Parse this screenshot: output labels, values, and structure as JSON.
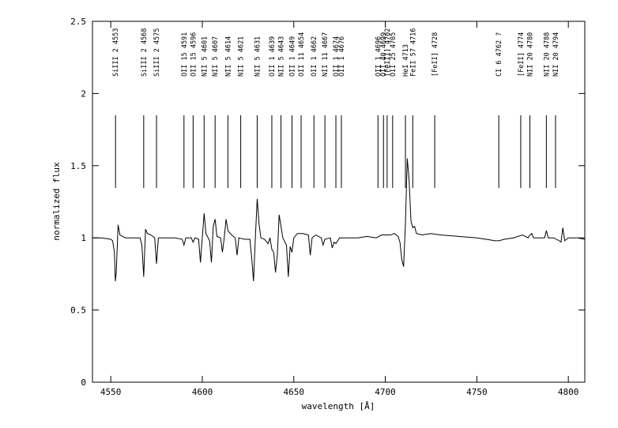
{
  "chart_data": {
    "type": "line",
    "x_label": "wavelength [Å]",
    "y_label": "normalized flux",
    "xlim": [
      4540,
      4809
    ],
    "ylim": [
      0,
      2.5
    ],
    "xticks": [
      4550,
      4600,
      4650,
      4700,
      4750,
      4800
    ],
    "yticks": [
      0,
      0.5,
      1,
      1.5,
      2,
      2.5
    ],
    "color": "#000000",
    "x": [
      4540,
      4545,
      4550,
      4551,
      4552,
      4552.5,
      4553,
      4554,
      4555,
      4558,
      4562,
      4566,
      4567,
      4568,
      4569,
      4570,
      4572,
      4574,
      4575,
      4576,
      4580,
      4585,
      4589,
      4590,
      4591,
      4594,
      4595,
      4596,
      4598,
      4599,
      4600,
      4601,
      4602,
      4604,
      4605,
      4606,
      4607,
      4608,
      4610,
      4611,
      4612,
      4613,
      4614,
      4616,
      4618,
      4619,
      4620,
      4623,
      4626,
      4627,
      4628,
      4629,
      4630,
      4631,
      4632,
      4634,
      4636,
      4637,
      4638,
      4639,
      4640,
      4641,
      4642,
      4643,
      4644,
      4646,
      4647,
      4648,
      4649,
      4650,
      4652,
      4655,
      4658,
      4659,
      4660,
      4662,
      4665,
      4666,
      4667,
      4670,
      4671,
      4672,
      4673,
      4675,
      4680,
      4685,
      4690,
      4695,
      4698,
      4700,
      4703,
      4705,
      4707,
      4708,
      4709,
      4710,
      4711,
      4712,
      4713,
      4714,
      4715,
      4716,
      4717,
      4720,
      4725,
      4730,
      4740,
      4750,
      4755,
      4760,
      4762,
      4765,
      4770,
      4775,
      4778,
      4779,
      4780,
      4781,
      4785,
      4787,
      4788,
      4789,
      4792,
      4795,
      4796,
      4797,
      4798,
      4800,
      4805,
      4809
    ],
    "values": [
      1.0,
      1.0,
      0.99,
      0.98,
      0.9,
      0.7,
      0.76,
      1.09,
      1.02,
      1.0,
      1.0,
      1.0,
      0.95,
      0.73,
      1.06,
      1.03,
      1.02,
      1.0,
      0.82,
      1.0,
      1.0,
      1.0,
      0.99,
      0.95,
      1.0,
      1.0,
      0.97,
      1.0,
      0.99,
      0.83,
      1.0,
      1.17,
      1.03,
      0.98,
      0.83,
      1.08,
      1.13,
      1.01,
      1.0,
      0.9,
      1.0,
      1.13,
      1.05,
      1.02,
      1.0,
      0.88,
      1.0,
      0.99,
      0.99,
      0.86,
      0.7,
      1.0,
      1.27,
      1.1,
      1.0,
      0.99,
      0.96,
      1.0,
      0.92,
      0.9,
      0.76,
      0.88,
      1.16,
      1.08,
      1.0,
      0.95,
      0.73,
      0.94,
      0.9,
      1.0,
      1.03,
      1.03,
      1.02,
      0.88,
      1.0,
      1.02,
      1.0,
      0.95,
      0.99,
      1.0,
      0.93,
      0.97,
      0.96,
      1.0,
      1.0,
      1.0,
      1.01,
      1.0,
      1.02,
      1.02,
      1.02,
      1.03,
      1.01,
      0.97,
      0.85,
      0.8,
      1.1,
      1.55,
      1.4,
      1.12,
      1.07,
      1.08,
      1.03,
      1.02,
      1.03,
      1.02,
      1.01,
      1.0,
      0.99,
      0.98,
      0.98,
      0.99,
      1.0,
      1.02,
      1.0,
      1.02,
      1.03,
      1.0,
      1.0,
      1.0,
      1.05,
      1.0,
      1.0,
      0.98,
      0.97,
      1.07,
      0.98,
      1.0,
      1.0,
      0.99
    ],
    "annotations": [
      {
        "label": "SiIII 2 4553",
        "x": 4552.6
      },
      {
        "label": "SiIII 2 4568",
        "x": 4568
      },
      {
        "label": "SiIII 2 4575",
        "x": 4575
      },
      {
        "label": "OII 15 4591",
        "x": 4590
      },
      {
        "label": "OII 15 4596",
        "x": 4595
      },
      {
        "label": "NII 5 4601",
        "x": 4601
      },
      {
        "label": "NII 5 4607",
        "x": 4607
      },
      {
        "label": "NII 5 4614",
        "x": 4614
      },
      {
        "label": "NII 5 4621",
        "x": 4621
      },
      {
        "label": "NII 5 4631",
        "x": 4630
      },
      {
        "label": "OII 1 4639",
        "x": 4638
      },
      {
        "label": "NII 5 4643",
        "x": 4643
      },
      {
        "label": "OII 1 4649",
        "x": 4649
      },
      {
        "label": "OII 11 4654",
        "x": 4654
      },
      {
        "label": "OII 1 4662",
        "x": 4661
      },
      {
        "label": "NII 11 4667",
        "x": 4667
      },
      {
        "label": "OII 1 4674",
        "x": 4673
      },
      {
        "label": "OII 1 4676",
        "x": 4676
      },
      {
        "label": "OII 1 4696",
        "x": 4696
      },
      {
        "label": "OII 40 4699",
        "x": 4699
      },
      {
        "label": "[FeIII] 4702",
        "x": 4701
      },
      {
        "label": "OII 25 4705",
        "x": 4704
      },
      {
        "label": "HeI 4713",
        "x": 4711
      },
      {
        "label": "FeII 57 4716",
        "x": 4715
      },
      {
        "label": "[FeII] 4728",
        "x": 4727
      },
      {
        "label": "CI 6 4762 ?",
        "x": 4762
      },
      {
        "label": "[FeII] 4774",
        "x": 4774
      },
      {
        "label": "NII 20 4780",
        "x": 4779
      },
      {
        "label": "NII 20 4788",
        "x": 4788
      },
      {
        "label": "NII 20 4794",
        "x": 4793
      }
    ]
  }
}
